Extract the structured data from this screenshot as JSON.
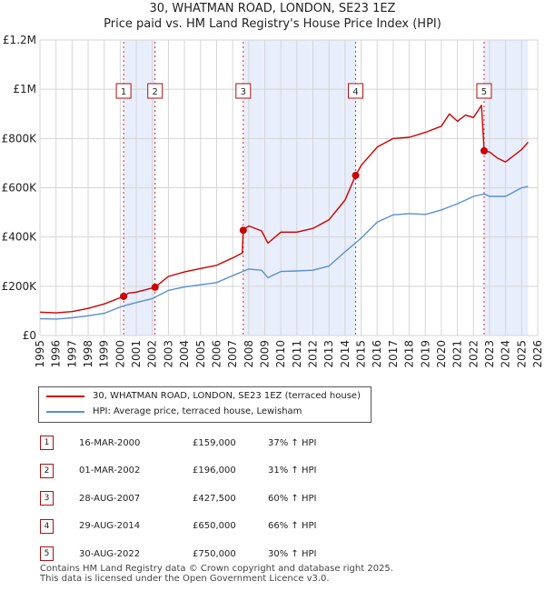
{
  "header": {
    "title_line1": "30, WHATMAN ROAD, LONDON, SE23 1EZ",
    "title_line2": "Price paid vs. HM Land Registry's House Price Index (HPI)"
  },
  "legend": {
    "property_label": "30, WHATMAN ROAD, LONDON, SE23 1EZ (terraced house)",
    "hpi_label": "HPI: Average price, terraced house, Lewisham"
  },
  "sales": [
    {
      "num": "1",
      "date": "16-MAR-2000",
      "price": "£159,000",
      "hpi": "37% ↑ HPI"
    },
    {
      "num": "2",
      "date": "01-MAR-2002",
      "price": "£196,000",
      "hpi": "31% ↑ HPI"
    },
    {
      "num": "3",
      "date": "28-AUG-2007",
      "price": "£427,500",
      "hpi": "60% ↑ HPI"
    },
    {
      "num": "4",
      "date": "29-AUG-2014",
      "price": "£650,000",
      "hpi": "66% ↑ HPI"
    },
    {
      "num": "5",
      "date": "30-AUG-2022",
      "price": "£750,000",
      "hpi": "30% ↑ HPI"
    }
  ],
  "footer": {
    "line1": "Contains HM Land Registry data © Crown copyright and database right 2025.",
    "line2": "This data is licensed under the Open Government Licence v3.0."
  },
  "colors": {
    "property": "#cc0000",
    "hpi": "#5b8fcf",
    "band": "#e8eefb",
    "grid": "#d5d5d5",
    "marker_border": "#aa1111"
  },
  "chart_data": {
    "type": "line",
    "xlim": [
      1995,
      2026
    ],
    "ylim": [
      0,
      1200000
    ],
    "x_ticks": [
      "1995",
      "1996",
      "1997",
      "1998",
      "1999",
      "2000",
      "2001",
      "2002",
      "2003",
      "2004",
      "2005",
      "2006",
      "2007",
      "2008",
      "2009",
      "2010",
      "2011",
      "2012",
      "2013",
      "2014",
      "2015",
      "2016",
      "2017",
      "2018",
      "2019",
      "2020",
      "2021",
      "2022",
      "2023",
      "2024",
      "2025",
      "2026"
    ],
    "y_ticks": [
      {
        "value": 0,
        "label": "£0"
      },
      {
        "value": 200000,
        "label": "£200K"
      },
      {
        "value": 400000,
        "label": "£400K"
      },
      {
        "value": 600000,
        "label": "£600K"
      },
      {
        "value": 800000,
        "label": "£800K"
      },
      {
        "value": 1000000,
        "label": "£1M"
      },
      {
        "value": 1200000,
        "label": "£1.2M"
      }
    ],
    "shaded_periods": [
      [
        2000.21,
        2002.17
      ],
      [
        2007.66,
        2014.66
      ],
      [
        2022.66,
        2025.4
      ]
    ],
    "transactions": [
      {
        "label": "1",
        "x": 2000.21,
        "y": 159000
      },
      {
        "label": "2",
        "x": 2002.17,
        "y": 196000
      },
      {
        "label": "3",
        "x": 2007.66,
        "y": 427500
      },
      {
        "label": "4",
        "x": 2014.66,
        "y": 650000
      },
      {
        "label": "5",
        "x": 2022.66,
        "y": 750000
      }
    ],
    "series": [
      {
        "name": "30, WHATMAN ROAD, LONDON, SE23 1EZ (terraced house)",
        "x": [
          1995,
          1996,
          1997,
          1998,
          1999,
          2000.21,
          2000.5,
          2001,
          2002.17,
          2003,
          2004,
          2005,
          2006,
          2007,
          2007.6,
          2007.66,
          2008,
          2008.8,
          2009.2,
          2010,
          2011,
          2012,
          2013,
          2014,
          2014.66,
          2015,
          2016,
          2017,
          2018,
          2019,
          2020,
          2020.5,
          2021,
          2021.5,
          2022,
          2022.5,
          2022.66,
          2023,
          2023.5,
          2024,
          2025,
          2025.4
        ],
        "values": [
          95000,
          92000,
          97000,
          110000,
          128000,
          159000,
          172000,
          176000,
          196000,
          240000,
          258000,
          272000,
          285000,
          315000,
          335000,
          427500,
          445000,
          425000,
          375000,
          420000,
          420000,
          435000,
          470000,
          550000,
          650000,
          690000,
          765000,
          800000,
          805000,
          825000,
          850000,
          900000,
          870000,
          895000,
          885000,
          935000,
          750000,
          745000,
          720000,
          705000,
          755000,
          785000
        ]
      },
      {
        "name": "HPI: Average price, terraced house, Lewisham",
        "x": [
          1995,
          1996,
          1997,
          1998,
          1999,
          2000,
          2001,
          2002,
          2003,
          2004,
          2005,
          2006,
          2007,
          2008,
          2008.8,
          2009.2,
          2010,
          2011,
          2012,
          2013,
          2014,
          2015,
          2016,
          2017,
          2018,
          2019,
          2020,
          2021,
          2022,
          2022.66,
          2023,
          2024,
          2025,
          2025.4
        ],
        "values": [
          68000,
          67000,
          72000,
          80000,
          90000,
          116000,
          134000,
          150000,
          183000,
          197000,
          206000,
          215000,
          243000,
          270000,
          265000,
          235000,
          260000,
          262000,
          265000,
          282000,
          340000,
          395000,
          460000,
          490000,
          495000,
          492000,
          510000,
          535000,
          565000,
          575000,
          565000,
          565000,
          600000,
          605000
        ]
      }
    ]
  }
}
